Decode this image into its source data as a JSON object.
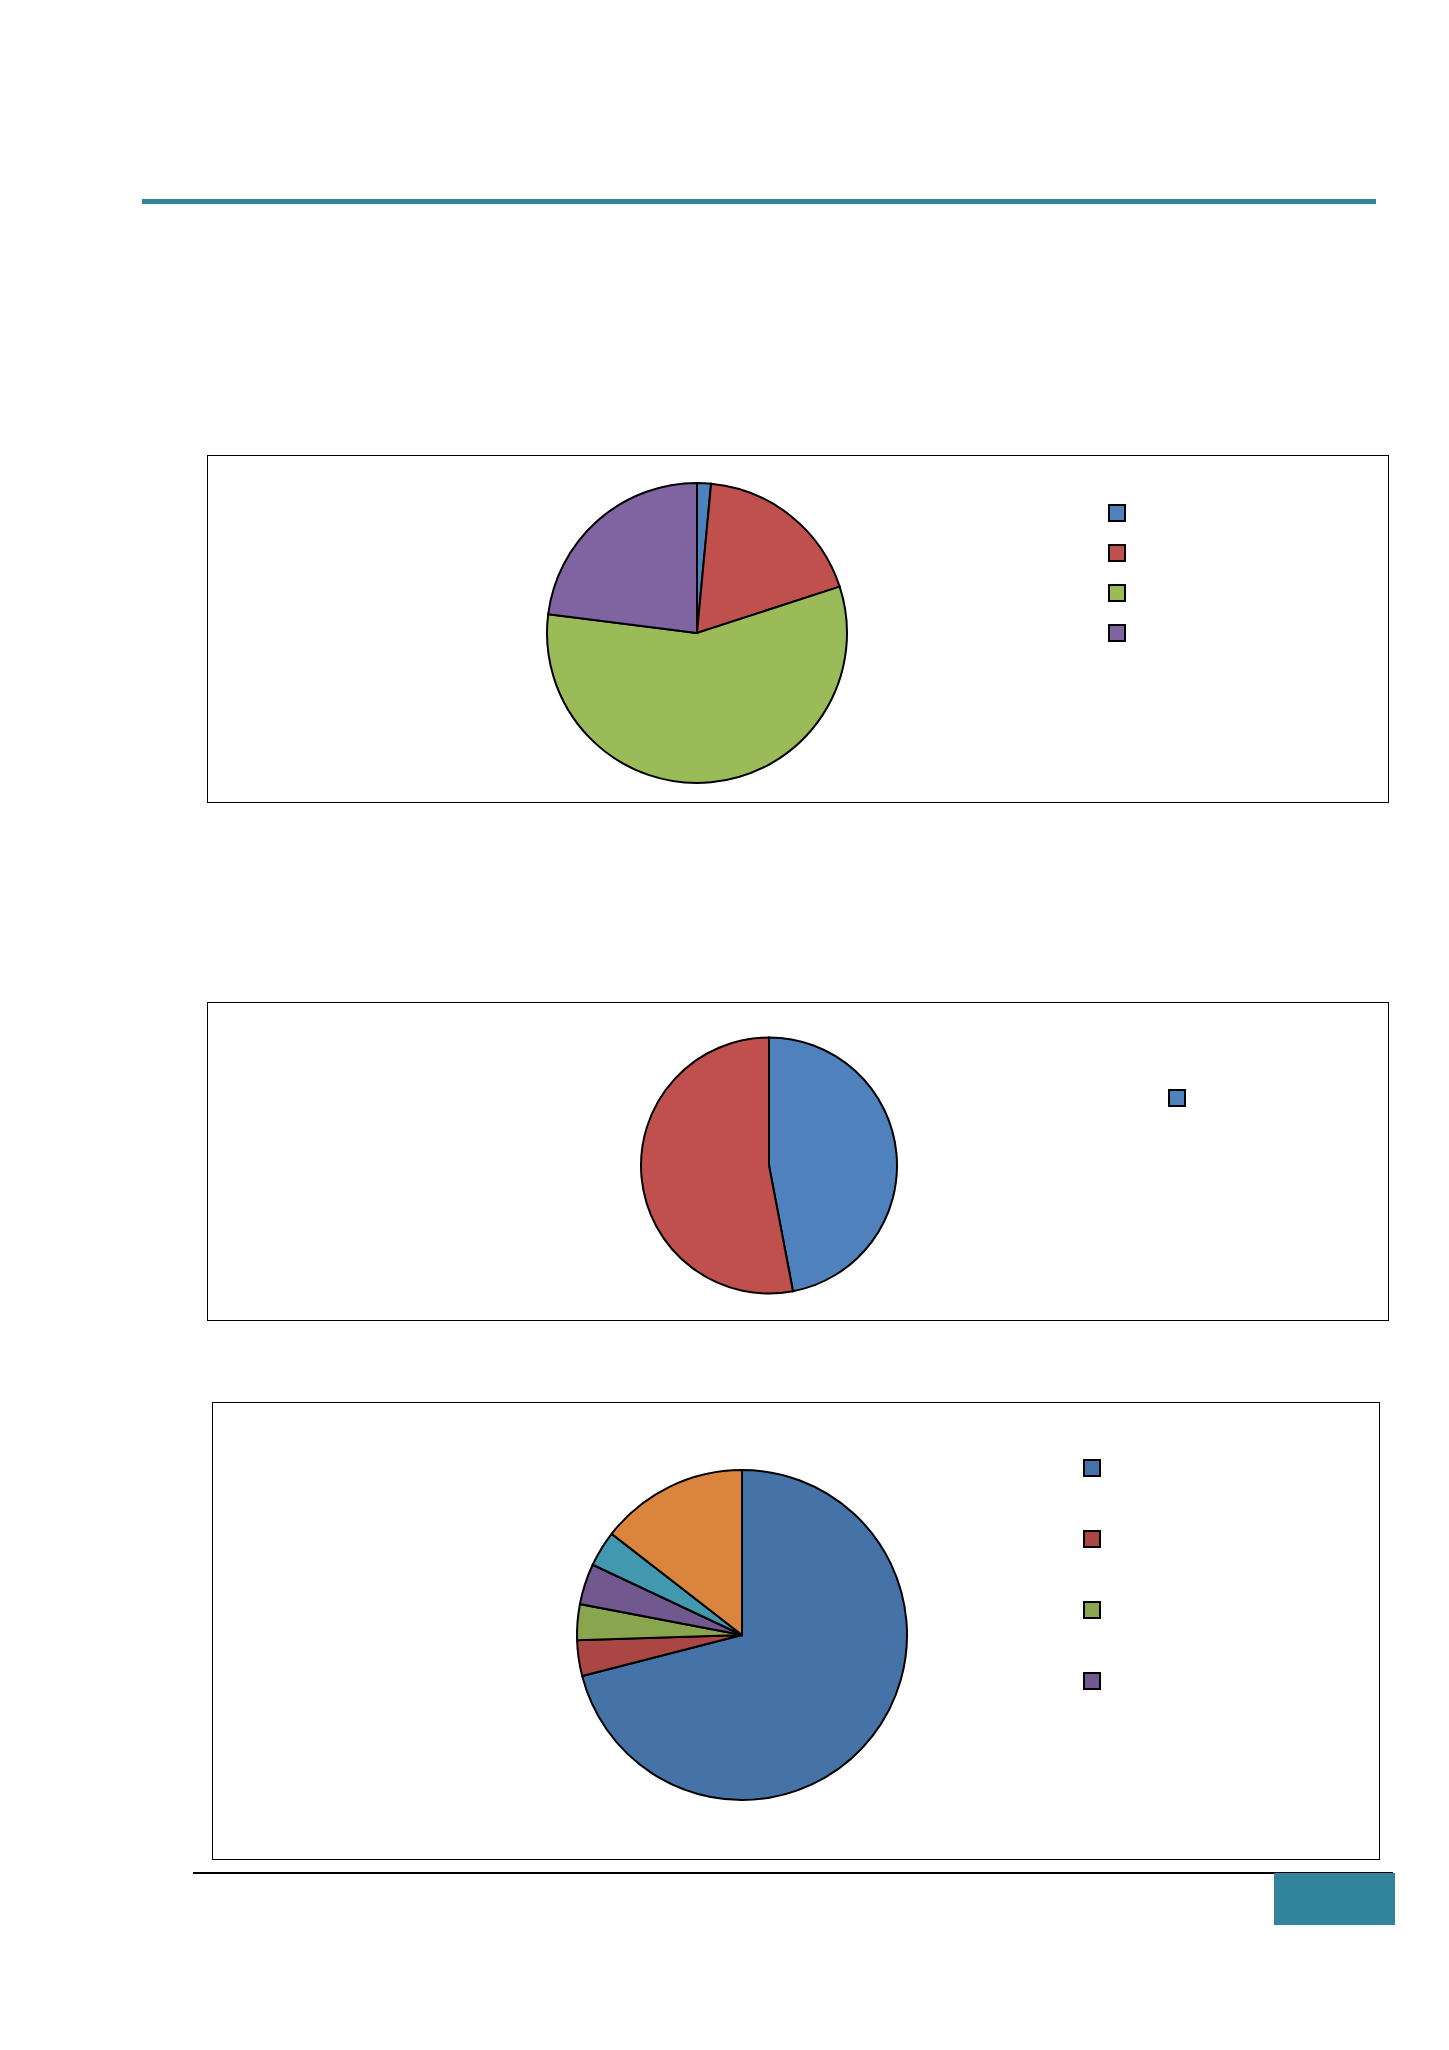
{
  "chart_data": [
    {
      "type": "pie",
      "categories": [
        null,
        null,
        null,
        null
      ],
      "values": [
        1.5,
        18.5,
        57,
        23
      ],
      "colors": [
        "#4f81bd",
        "#c0504d",
        "#9bbb59",
        "#8064a2"
      ]
    },
    {
      "type": "pie",
      "categories": [
        null,
        null
      ],
      "values": [
        47,
        53
      ],
      "colors": [
        "#4f81bd",
        "#c0504d"
      ]
    },
    {
      "type": "pie",
      "categories": [
        null,
        null,
        null,
        null,
        null,
        null
      ],
      "values": [
        71,
        3.5,
        3.5,
        4,
        3.5,
        14.5
      ],
      "colors": [
        "#4572a7",
        "#aa4643",
        "#89a54e",
        "#71588f",
        "#4198af",
        "#db843d"
      ]
    }
  ]
}
